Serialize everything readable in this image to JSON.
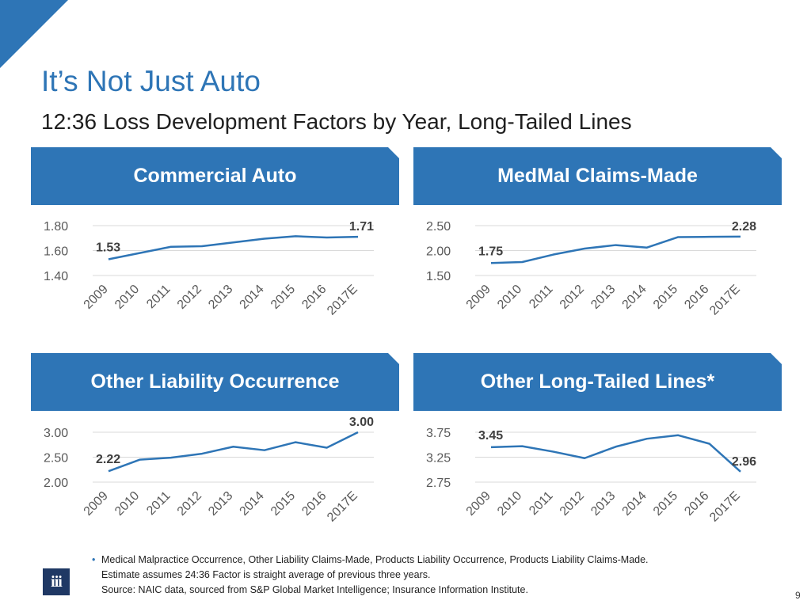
{
  "header": {
    "title": "It’s Not Just Auto",
    "subtitle": "12:36 Loss Development Factors by Year, Long-Tailed Lines"
  },
  "colors": {
    "accent": "#2e75b6",
    "line": "#2e75b6",
    "grid": "#d9d9d9",
    "logo": "#1f3864"
  },
  "chart_data": [
    {
      "type": "line",
      "title": "Commercial Auto",
      "categories": [
        "2009",
        "2010",
        "2011",
        "2012",
        "2013",
        "2014",
        "2015",
        "2016",
        "2017E"
      ],
      "values": [
        1.53,
        1.58,
        1.63,
        1.635,
        1.665,
        1.695,
        1.715,
        1.705,
        1.71
      ],
      "ylim": [
        1.4,
        1.8
      ],
      "yticks": [
        "1.80",
        "1.60",
        "1.40"
      ],
      "ytick_values": [
        1.8,
        1.6,
        1.4
      ],
      "data_labels": [
        {
          "index": 0,
          "text": "1.53"
        },
        {
          "index": 8,
          "text": "1.71"
        }
      ]
    },
    {
      "type": "line",
      "title": "MedMal Claims-Made",
      "categories": [
        "2009",
        "2010",
        "2011",
        "2012",
        "2013",
        "2014",
        "2015",
        "2016",
        "2017E"
      ],
      "values": [
        1.75,
        1.77,
        1.92,
        2.04,
        2.11,
        2.06,
        2.27,
        2.275,
        2.28
      ],
      "ylim": [
        1.5,
        2.5
      ],
      "yticks": [
        "2.50",
        "2.00",
        "1.50"
      ],
      "ytick_values": [
        2.5,
        2.0,
        1.5
      ],
      "data_labels": [
        {
          "index": 0,
          "text": "1.75"
        },
        {
          "index": 8,
          "text": "2.28"
        }
      ]
    },
    {
      "type": "line",
      "title": "Other Liability Occurrence",
      "categories": [
        "2009",
        "2010",
        "2011",
        "2012",
        "2013",
        "2014",
        "2015",
        "2016",
        "2017E"
      ],
      "values": [
        2.22,
        2.45,
        2.49,
        2.57,
        2.71,
        2.64,
        2.8,
        2.69,
        3.0
      ],
      "ylim": [
        2.0,
        3.0
      ],
      "yticks": [
        "3.00",
        "2.50",
        "2.00"
      ],
      "ytick_values": [
        3.0,
        2.5,
        2.0
      ],
      "data_labels": [
        {
          "index": 0,
          "text": "2.22"
        },
        {
          "index": 8,
          "text": "3.00"
        }
      ]
    },
    {
      "type": "line",
      "title": "Other Long-Tailed Lines*",
      "categories": [
        "2009",
        "2010",
        "2011",
        "2012",
        "2013",
        "2014",
        "2015",
        "2016",
        "2017E"
      ],
      "values": [
        3.45,
        3.47,
        3.36,
        3.23,
        3.46,
        3.62,
        3.69,
        3.52,
        2.96
      ],
      "ylim": [
        2.75,
        3.75
      ],
      "yticks": [
        "3.75",
        "3.25",
        "2.75"
      ],
      "ytick_values": [
        3.75,
        3.25,
        2.75
      ],
      "data_labels": [
        {
          "index": 0,
          "text": "3.45"
        },
        {
          "index": 8,
          "text": "2.96"
        }
      ]
    }
  ],
  "footer": {
    "bullet": "•",
    "note1": "Medical Malpractice Occurrence, Other Liability Claims-Made, Products Liability Occurrence, Products Liability Claims-Made.",
    "note2": "Estimate assumes 24:36 Factor is straight average of previous three years.",
    "source": "Source: NAIC data, sourced from S&P Global Market Intelligence; Insurance Information Institute.",
    "logo_text": "iii",
    "page_number": "9"
  }
}
